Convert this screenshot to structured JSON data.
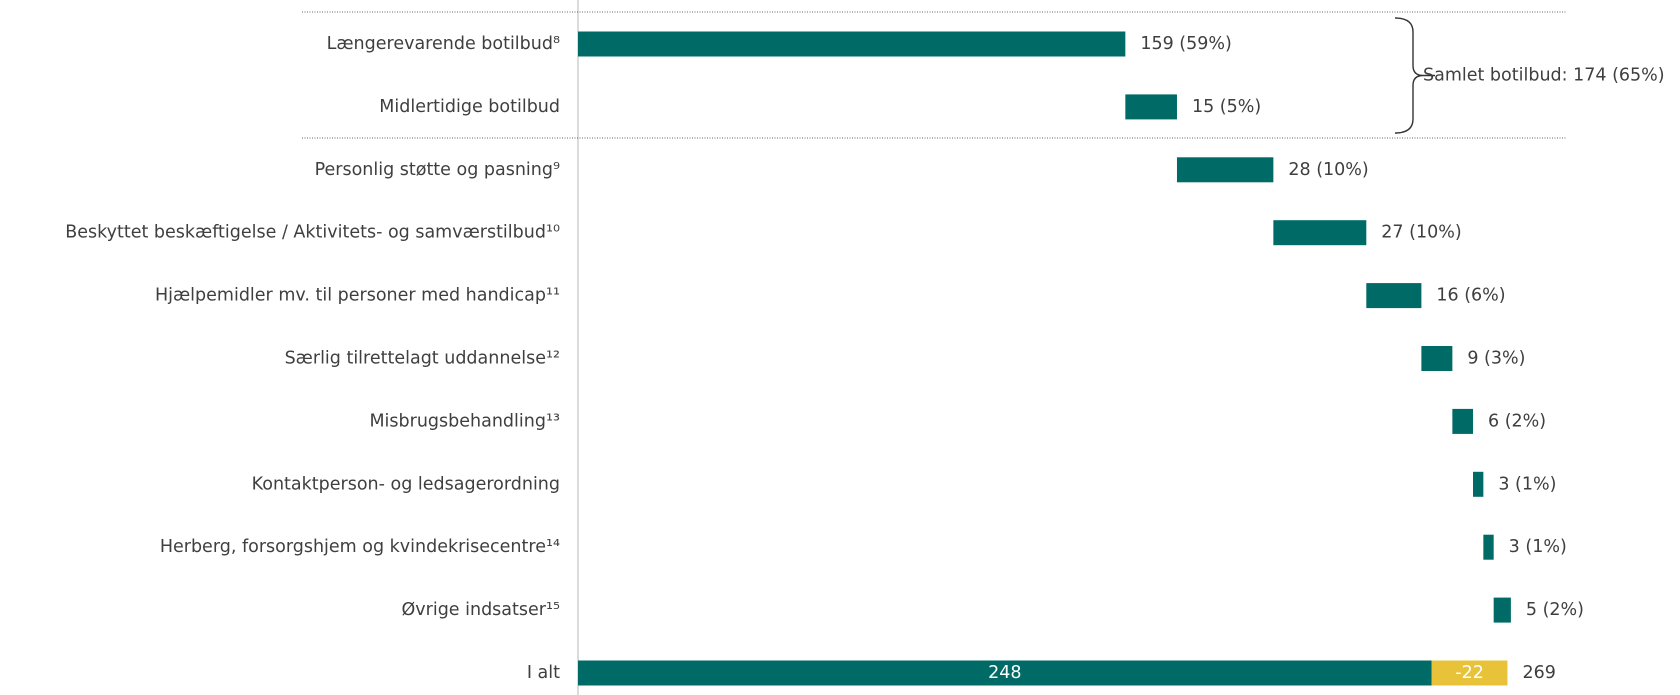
{
  "chart_data": {
    "type": "bar",
    "subtype": "waterfall-horizontal",
    "categories": [
      "Længerevarende botilbud⁸",
      "Midlertidige botilbud",
      "Personlig støtte og pasning⁹",
      "Beskyttet beskæftigelse / Aktivitets- og samværstilbud¹⁰",
      "Hjælpemidler mv. til personer med handicap¹¹",
      "Særlig tilrettelagt uddannelse¹²",
      "Misbrugsbehandling¹³",
      "Kontaktperson- og ledsagerordning",
      "Herberg, forsorgshjem og kvindekrisecentre¹⁴",
      "Øvrige indsatser¹⁵",
      "I alt"
    ],
    "values": [
      159,
      15,
      28,
      27,
      16,
      9,
      6,
      3,
      3,
      5,
      269
    ],
    "value_labels": [
      "159 (59%)",
      "15 (5%)",
      "28 (10%)",
      "27 (10%)",
      "16 (6%)",
      "9 (3%)",
      "6 (2%)",
      "3 (1%)",
      "3 (1%)",
      "5 (2%)",
      "269"
    ],
    "total_segments": [
      {
        "value": 248,
        "label": "248",
        "color": "#006a66"
      },
      {
        "value": 22,
        "label": "-22",
        "color": "#e8c33a"
      }
    ],
    "bracket": {
      "spans": [
        0,
        1
      ],
      "label": "Samlet botilbud: 174 (65%)"
    },
    "xlim": [
      0,
      270
    ],
    "colors": {
      "bar": "#006a66",
      "negative": "#e8c33a",
      "text": "#3f3f3f"
    },
    "grid": false,
    "legend": "none"
  }
}
